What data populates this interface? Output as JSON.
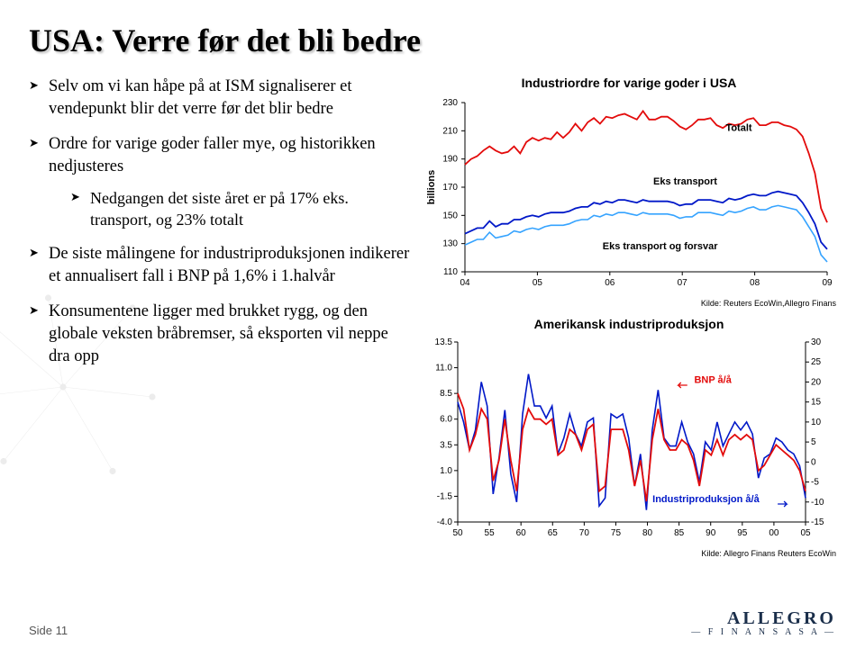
{
  "title": "USA: Verre før det bli bedre",
  "bullets": [
    "Selv om vi kan håpe på at ISM signaliserer et vendepunkt blir det verre før det blir bedre",
    "Ordre for varige goder faller mye, og historikken nedjusteres",
    "De siste målingene for industriproduksjonen indikerer et annualisert fall i BNP på 1,6% i 1.halvår",
    "Konsumentene ligger med brukket rygg, og den globale veksten bråbremser, så eksporten vil neppe dra opp"
  ],
  "sub_bullets": [
    "Nedgangen det siste året er på 17% eks. transport, og 23% totalt"
  ],
  "page_label": "Side 11",
  "logo_main": "ALLEGRO",
  "logo_sub": "— F I N A N S  A S A —",
  "chart1": {
    "title": "Industriordre for varige goder i USA",
    "ylabel": "billions",
    "ylim": [
      110,
      230
    ],
    "ytick_step": 20,
    "xticks": [
      "04",
      "05",
      "06",
      "07",
      "08",
      "09"
    ],
    "src": "Kilde: Reuters EcoWin,Allegro Finans",
    "labels": {
      "totalt": "Totalt",
      "eks_transport": "Eks transport",
      "eks_transport_forsvar": "Eks transport og forsvar"
    },
    "colors": {
      "blue": "#0018c8",
      "red": "#e30b0b",
      "ltblue": "#35a3ff"
    },
    "series": {
      "totalt": [
        186,
        190,
        192,
        196,
        199,
        196,
        194,
        195,
        199,
        194,
        202,
        205,
        203,
        205,
        204,
        209,
        205,
        209,
        215,
        210,
        216,
        219,
        215,
        220,
        219,
        221,
        222,
        220,
        218,
        224,
        218,
        218,
        220,
        220,
        217,
        213,
        211,
        214,
        218,
        218,
        219,
        214,
        212,
        215,
        214,
        215,
        218,
        219,
        214,
        214,
        216,
        216,
        214,
        213,
        211,
        206,
        194,
        180,
        155,
        145
      ],
      "eks_transport": [
        137,
        139,
        141,
        141,
        146,
        142,
        144,
        144,
        147,
        147,
        149,
        150,
        149,
        151,
        152,
        152,
        152,
        153,
        155,
        156,
        156,
        159,
        158,
        160,
        159,
        161,
        161,
        160,
        159,
        161,
        160,
        160,
        160,
        160,
        159,
        157,
        158,
        158,
        161,
        161,
        161,
        160,
        159,
        162,
        161,
        162,
        164,
        165,
        164,
        164,
        166,
        167,
        166,
        165,
        164,
        159,
        152,
        144,
        131,
        126
      ],
      "eks_transport_forsvar": [
        129,
        131,
        133,
        133,
        138,
        134,
        135,
        136,
        139,
        138,
        140,
        141,
        140,
        142,
        143,
        143,
        143,
        144,
        146,
        147,
        147,
        150,
        149,
        151,
        150,
        152,
        152,
        151,
        150,
        152,
        151,
        151,
        151,
        151,
        150,
        148,
        149,
        149,
        152,
        152,
        152,
        151,
        150,
        153,
        152,
        153,
        155,
        156,
        154,
        154,
        156,
        157,
        156,
        155,
        154,
        149,
        142,
        135,
        122,
        117
      ]
    }
  },
  "chart2": {
    "title": "Amerikansk industriproduksjon",
    "ylim_left": [
      -4.0,
      13.5
    ],
    "yticks_left": [
      -4.0,
      -1.5,
      1.0,
      3.5,
      6.0,
      8.5,
      11.0,
      13.5
    ],
    "ylim_right": [
      -15,
      30
    ],
    "yticks_right": [
      -15,
      -10,
      -5,
      0,
      5,
      10,
      15,
      20,
      25,
      30
    ],
    "xticks": [
      "50",
      "55",
      "60",
      "65",
      "70",
      "75",
      "80",
      "85",
      "90",
      "95",
      "00",
      "05"
    ],
    "src": "Kilde: Allegro Finans Reuters EcoWin",
    "labels": {
      "bnp": "BNP å/å",
      "ind": "Industriproduksjon å/å"
    },
    "colors": {
      "blue": "#0018c8",
      "red": "#e30b0b"
    },
    "series": {
      "bnp_arrows": {
        "left": true
      },
      "ind_arrows": {
        "right": true
      },
      "bnp": [
        8.5,
        7,
        3,
        4.5,
        7,
        6,
        0,
        2,
        6,
        2,
        -1,
        5,
        7,
        6,
        6,
        5.5,
        6,
        2.5,
        3,
        5,
        4.5,
        3,
        5,
        5.5,
        -1,
        -0.5,
        5,
        5,
        5,
        3,
        -0.5,
        2,
        -2,
        4,
        7,
        4,
        3,
        3,
        4,
        3.5,
        2,
        -0.5,
        3,
        2.5,
        4,
        2.5,
        4,
        4.5,
        4,
        4.5,
        4,
        1,
        1.5,
        2.5,
        3.5,
        3,
        2.5,
        2,
        1,
        -1
      ],
      "ind": [
        15,
        10,
        3,
        8,
        20,
        14,
        -8,
        1,
        13,
        -3,
        -10,
        12,
        22,
        14,
        14,
        11,
        14,
        2,
        6,
        12,
        7,
        4,
        10,
        11,
        -11,
        -9,
        12,
        11,
        12,
        6,
        -6,
        2,
        -12,
        8,
        18,
        6,
        4,
        4,
        10,
        5,
        2,
        -5,
        5,
        3,
        10,
        4,
        7,
        10,
        8,
        10,
        7,
        -4,
        1,
        2,
        6,
        5,
        3,
        2,
        -1,
        -9
      ]
    }
  }
}
